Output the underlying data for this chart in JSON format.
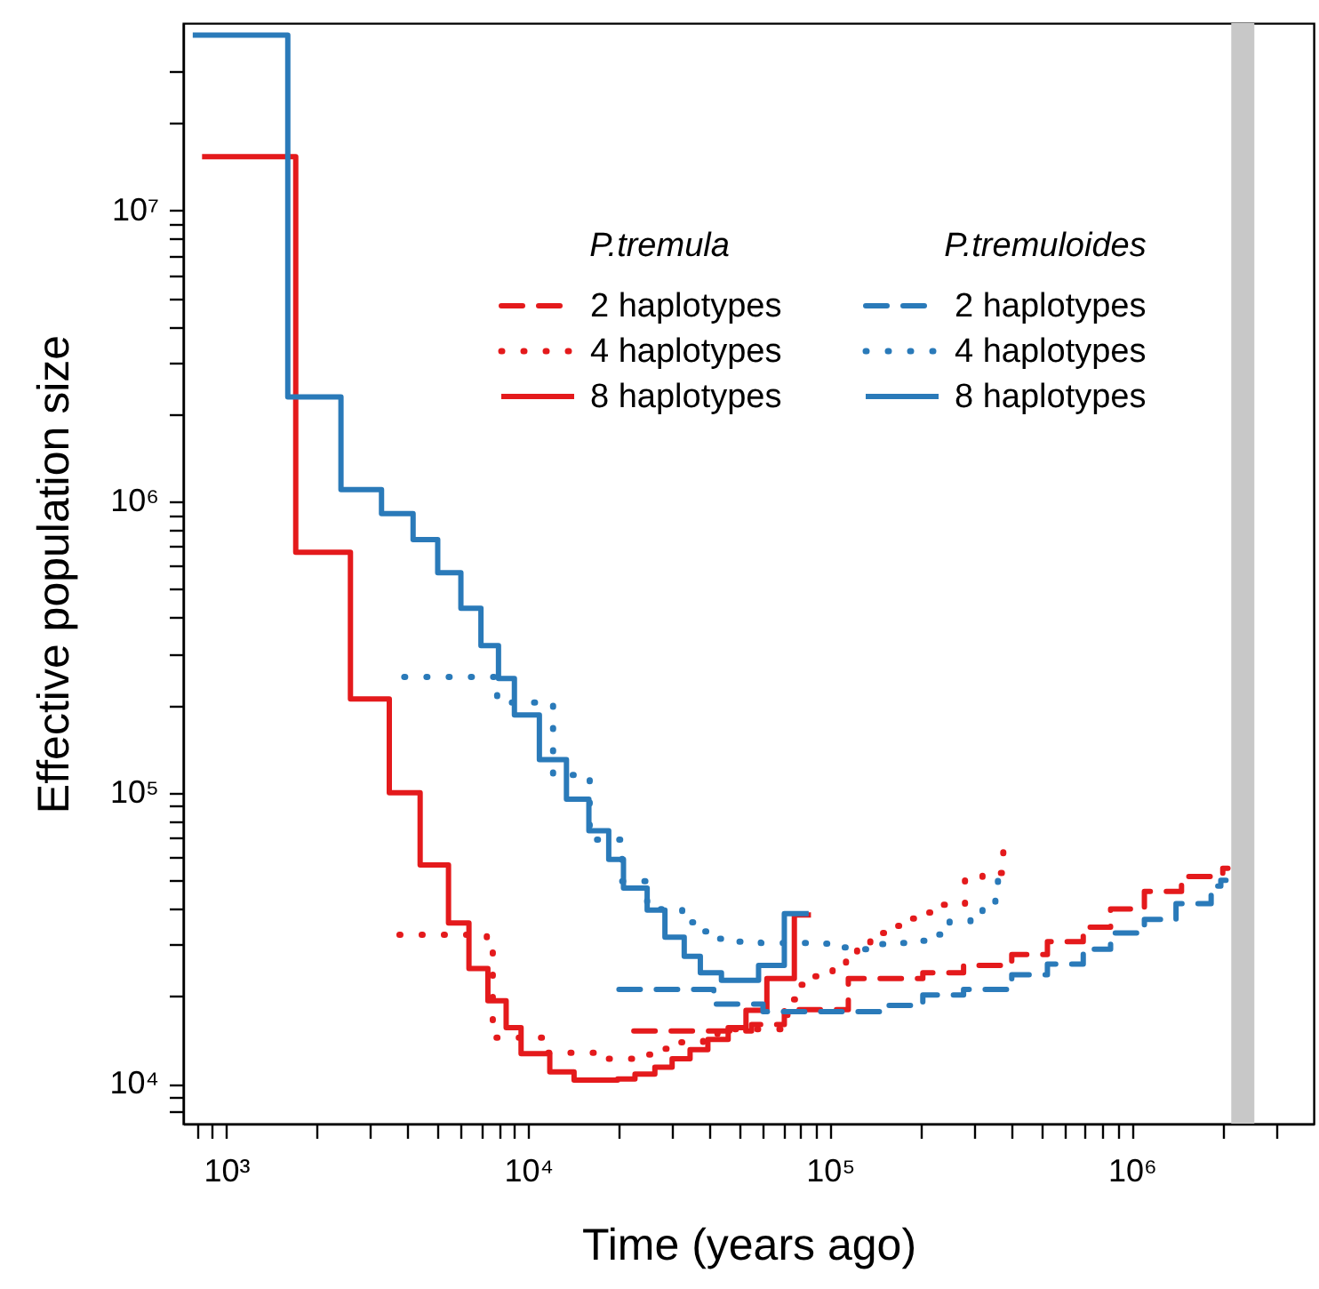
{
  "chart_data": {
    "type": "step",
    "xlabel": "Time (years ago)",
    "ylabel": "Effective population size",
    "log": "xy",
    "legend": "top right",
    "annotations": [
      "P.tremula",
      "P.tremuloides"
    ],
    "xlim": [
      720,
      4000000
    ],
    "ylim": [
      7300,
      44000000
    ],
    "xticks": [
      {
        "value": 800,
        "label": null
      },
      {
        "value": 900,
        "label": null
      },
      {
        "value": 1000,
        "label": "10³"
      },
      {
        "value": 2000,
        "label": null
      },
      {
        "value": 3000,
        "label": null
      },
      {
        "value": 4000,
        "label": null
      },
      {
        "value": 5000,
        "label": null
      },
      {
        "value": 6000,
        "label": null
      },
      {
        "value": 7000,
        "label": null
      },
      {
        "value": 8000,
        "label": null
      },
      {
        "value": 9000,
        "label": null
      },
      {
        "value": 10000,
        "label": "10⁴"
      },
      {
        "value": 20000,
        "label": null
      },
      {
        "value": 30000,
        "label": null
      },
      {
        "value": 40000,
        "label": null
      },
      {
        "value": 50000,
        "label": null
      },
      {
        "value": 60000,
        "label": null
      },
      {
        "value": 70000,
        "label": null
      },
      {
        "value": 80000,
        "label": null
      },
      {
        "value": 90000,
        "label": null
      },
      {
        "value": 100000,
        "label": "10⁵"
      },
      {
        "value": 200000,
        "label": null
      },
      {
        "value": 300000,
        "label": null
      },
      {
        "value": 400000,
        "label": null
      },
      {
        "value": 500000,
        "label": null
      },
      {
        "value": 600000,
        "label": null
      },
      {
        "value": 700000,
        "label": null
      },
      {
        "value": 800000,
        "label": null
      },
      {
        "value": 900000,
        "label": null
      },
      {
        "value": 1000000,
        "label": "10⁶"
      },
      {
        "value": 2000000,
        "label": null
      },
      {
        "value": 3000000,
        "label": null
      }
    ],
    "yticks": [
      {
        "value": 8000,
        "label": null
      },
      {
        "value": 9000,
        "label": null
      },
      {
        "value": 10000,
        "label": "10⁴"
      },
      {
        "value": 20000,
        "label": null
      },
      {
        "value": 30000,
        "label": null
      },
      {
        "value": 40000,
        "label": null
      },
      {
        "value": 50000,
        "label": null
      },
      {
        "value": 60000,
        "label": null
      },
      {
        "value": 70000,
        "label": null
      },
      {
        "value": 80000,
        "label": null
      },
      {
        "value": 90000,
        "label": null
      },
      {
        "value": 100000,
        "label": "10⁵"
      },
      {
        "value": 200000,
        "label": null
      },
      {
        "value": 300000,
        "label": null
      },
      {
        "value": 400000,
        "label": null
      },
      {
        "value": 500000,
        "label": null
      },
      {
        "value": 600000,
        "label": null
      },
      {
        "value": 700000,
        "label": null
      },
      {
        "value": 800000,
        "label": null
      },
      {
        "value": 900000,
        "label": null
      },
      {
        "value": 1000000,
        "label": "10⁶"
      },
      {
        "value": 2000000,
        "label": null
      },
      {
        "value": 3000000,
        "label": null
      },
      {
        "value": 4000000,
        "label": null
      },
      {
        "value": 5000000,
        "label": null
      },
      {
        "value": 6000000,
        "label": null
      },
      {
        "value": 7000000,
        "label": null
      },
      {
        "value": 8000000,
        "label": null
      },
      {
        "value": 9000000,
        "label": null
      },
      {
        "value": 10000000,
        "label": "10⁷"
      },
      {
        "value": 20000000,
        "label": null
      },
      {
        "value": 30000000,
        "label": null
      }
    ],
    "ref_lines": [
      {
        "axis": "x",
        "value": 2330000,
        "color": "#c8c8c8"
      }
    ],
    "series": [
      {
        "name": "2 haplotypes",
        "color": "#e41a1c",
        "line_style": "dashed",
        "x": [
          22400,
          55000,
          70600,
          115000,
          203000,
          277000,
          400000,
          525000,
          690000,
          850000,
          1100000,
          1460000,
          2000000,
          2080000
        ],
        "values": [
          15200,
          16000,
          18000,
          23000,
          24100,
          25500,
          27800,
          30800,
          34500,
          39900,
          45800,
          51500,
          55000,
          55000
        ]
      },
      {
        "name": "4 haplotypes",
        "color": "#e41a1c",
        "line_style": "dotted",
        "x": [
          3750,
          7300,
          7640,
          11400,
          17100,
          24000,
          28100,
          32200,
          38000,
          42400,
          72300,
          78000,
          88000,
          102000,
          113000,
          123000,
          136000,
          155000,
          177000,
          203000,
          234000,
          280000,
          320000,
          375000,
          385000
        ],
        "values": [
          32500,
          30800,
          14400,
          12800,
          12200,
          12600,
          13200,
          13900,
          14400,
          15400,
          19500,
          21900,
          23400,
          24600,
          26700,
          30000,
          33000,
          34900,
          37000,
          38800,
          41200,
          50600,
          53000,
          67000,
          67000
        ]
      },
      {
        "name": "8 haplotypes",
        "color": "#e41a1c",
        "line_style": "solid",
        "x": [
          832,
          1700,
          2580,
          3470,
          4390,
          5450,
          6370,
          7360,
          8460,
          9480,
          11800,
          14200,
          19800,
          22600,
          26300,
          30000,
          34400,
          39400,
          46000,
          52700,
          61800,
          76200,
          86500
        ],
        "values": [
          15300000,
          670000,
          210000,
          100000,
          56500,
          35700,
          24900,
          19300,
          15600,
          12700,
          11000,
          10300,
          10400,
          10800,
          11400,
          12200,
          13100,
          14200,
          15600,
          17900,
          23000,
          38000,
          38000
        ]
      },
      {
        "name": "2 haplotypes",
        "color": "#2a7ab9",
        "line_style": "dashed",
        "x": [
          20000,
          41200,
          60000,
          152000,
          203000,
          277000,
          400000,
          525000,
          690000,
          850000,
          1100000,
          1400000,
          1830000,
          1970000,
          2050000
        ],
        "values": [
          21100,
          18800,
          17700,
          18600,
          20200,
          21100,
          23700,
          25800,
          29000,
          33000,
          36700,
          41600,
          47800,
          50000,
          50000
        ]
      },
      {
        "name": "4 haplotypes",
        "color": "#2a7ab9",
        "line_style": "dotted",
        "x": [
          3890,
          7900,
          12100,
          16000,
          20500,
          24800,
          32400,
          36500,
          41800,
          49300,
          59000,
          86000,
          100000,
          120000,
          141000,
          168000,
          199000,
          227000,
          249000,
          292000,
          320000,
          353000,
          360000,
          365000
        ],
        "values": [
          250000,
          204000,
          115000,
          69000,
          49700,
          39800,
          35900,
          33400,
          31500,
          30800,
          30500,
          30300,
          29400,
          29000,
          30200,
          30500,
          31000,
          32600,
          36200,
          37700,
          41600,
          45500,
          54400,
          54400
        ]
      },
      {
        "name": "8 haplotypes",
        "color": "#2a7ab9",
        "line_style": "solid",
        "x": [
          775,
          1600,
          2400,
          3270,
          4160,
          5020,
          5990,
          6980,
          7980,
          9010,
          10900,
          13400,
          15900,
          18500,
          20700,
          24800,
          28400,
          32900,
          37200,
          43700,
          58000,
          70600,
          85000
        ],
        "values": [
          40000000,
          2290000,
          1100000,
          910000,
          740000,
          570000,
          430000,
          320000,
          247000,
          185000,
          130000,
          95000,
          74000,
          59000,
          47000,
          39500,
          31900,
          27400,
          24100,
          22700,
          25500,
          38400,
          38400
        ]
      }
    ]
  }
}
